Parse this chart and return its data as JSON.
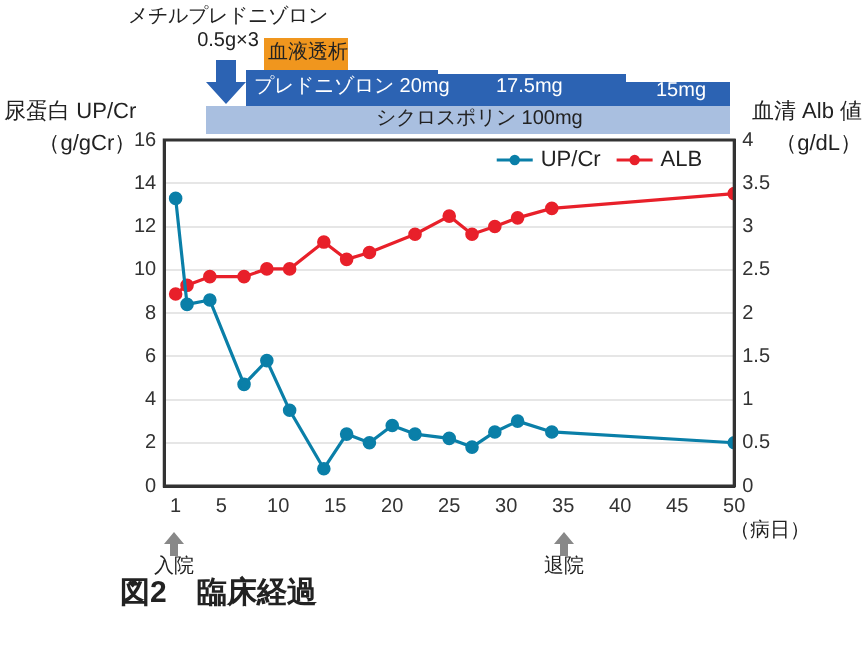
{
  "chart_data": {
    "type": "line",
    "title": "図2　臨床経過",
    "ylabel": "尿蛋白 UP/Cr\n（g/gCr）",
    "y2label": "血清 Alb 値（g/dL）",
    "xlabel": "（病日）",
    "annotations": [
      "メチルプレドニゾロン\n0.5g×3",
      "血液透析",
      "プレドニゾロン 20mg",
      "17.5mg",
      "15mg",
      "シクロスポリン 100mg",
      "入院",
      "退院"
    ],
    "x": [
      1,
      2,
      4,
      7,
      9,
      11,
      14,
      16,
      18,
      20,
      22,
      25,
      27,
      29,
      31,
      34,
      50
    ],
    "series": [
      {
        "name": "UP/Cr",
        "color": "#0a7fa8",
        "values": [
          13.3,
          8.4,
          8.6,
          4.7,
          5.8,
          3.5,
          0.8,
          2.4,
          2.0,
          2.8,
          2.4,
          2.2,
          1.8,
          2.5,
          3.0,
          2.5,
          2.0
        ]
      },
      {
        "name": "ALB",
        "color": "#e8202a",
        "axis": "y2",
        "x": [
          1,
          2,
          4,
          7,
          9,
          11,
          14,
          16,
          18,
          22,
          25,
          27,
          29,
          31,
          34,
          50
        ],
        "values": [
          2.22,
          2.32,
          2.42,
          2.42,
          2.51,
          2.51,
          2.82,
          2.62,
          2.7,
          2.91,
          3.12,
          2.91,
          3.0,
          3.1,
          3.21,
          3.38
        ]
      }
    ],
    "xlim": [
      0,
      50
    ],
    "xticks": [
      1,
      5,
      10,
      15,
      20,
      25,
      30,
      35,
      40,
      45,
      50
    ],
    "ylim": [
      0,
      16
    ],
    "yticks": [
      0,
      2,
      4,
      6,
      8,
      10,
      12,
      14,
      16
    ],
    "y2lim": [
      0,
      4
    ],
    "y2ticks": [
      0,
      0.5,
      1,
      1.5,
      2,
      2.5,
      3,
      3.5,
      4
    ],
    "grid": "y",
    "legend": "top right",
    "marker": "circle",
    "line_style": "solid"
  }
}
